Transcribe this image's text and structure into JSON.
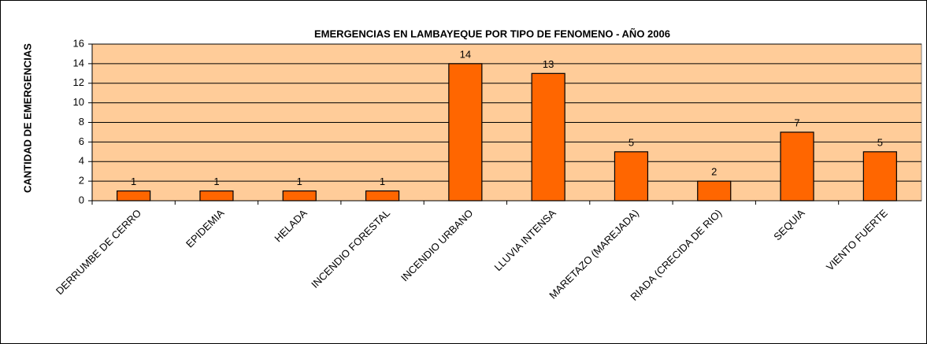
{
  "chart_data": {
    "type": "bar",
    "title": "EMERGENCIAS EN LAMBAYEQUE POR TIPO DE FENOMENO - AÑO 2006",
    "y_label": "CANTIDAD DE EMERGENCIAS",
    "categories": [
      "DERRUMBE DE CERRO",
      "EPIDEMIA",
      "HELADA",
      "INCENDIO FORESTAL",
      "INCENDIO URBANO",
      "LLUVIA INTENSA",
      "MARETAZO (MAREJADA)",
      "RIADA (CRECIDA DE RIO)",
      "SEQUIA",
      "VIENTO FUERTE"
    ],
    "values": [
      1,
      1,
      1,
      1,
      14,
      13,
      5,
      2,
      7,
      5
    ],
    "color": "#ff6600",
    "ylim": [
      0,
      16
    ],
    "yticks": [
      0,
      2,
      4,
      6,
      8,
      10,
      12,
      14,
      16
    ],
    "grid": true
  }
}
